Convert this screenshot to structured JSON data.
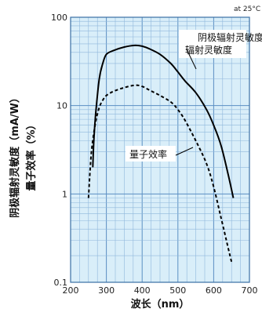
{
  "chart_data": {
    "type": "line",
    "condition_label": "at 25°C",
    "xlabel": "波长（nm）",
    "ylabel_line1": "阴极辐射灵敏度（mA/W）",
    "ylabel_line2": "量子效率（%）",
    "xlim": [
      200,
      700
    ],
    "ylim": [
      0.1,
      100
    ],
    "yscale": "log",
    "grid": true,
    "x_ticks": [
      "200",
      "300",
      "400",
      "500",
      "600",
      "700"
    ],
    "y_ticks": [
      "100",
      "10",
      "1",
      "0.1"
    ],
    "colors": {
      "plot_background": "#d9eef9",
      "grid_major": "#5b8fc3",
      "grid_minor": "#8fb7dc",
      "line": "#000000"
    },
    "series": [
      {
        "name": "阴极辐射灵敏度",
        "style": "solid",
        "x": [
          262,
          265,
          270,
          280,
          290,
          300,
          320,
          350,
          380,
          400,
          420,
          450,
          480,
          500,
          520,
          550,
          580,
          600,
          620,
          640,
          655
        ],
        "y": [
          2.0,
          4.0,
          8.0,
          20.0,
          30.0,
          38.0,
          42.0,
          46.0,
          48.0,
          47.0,
          44.0,
          38.0,
          30.0,
          24.0,
          19.0,
          14.0,
          9.0,
          6.0,
          3.6,
          1.7,
          0.9
        ]
      },
      {
        "name": "量子效率",
        "style": "dashed",
        "x": [
          250,
          255,
          260,
          270,
          280,
          290,
          300,
          320,
          350,
          380,
          400,
          420,
          450,
          480,
          500,
          520,
          550,
          580,
          600,
          620,
          640,
          650
        ],
        "y": [
          0.9,
          2.0,
          3.5,
          6.5,
          9.5,
          11.5,
          13.0,
          14.5,
          16.0,
          17.0,
          16.5,
          15.0,
          13.0,
          11.0,
          9.0,
          6.8,
          4.0,
          2.2,
          1.2,
          0.55,
          0.25,
          0.17
        ]
      }
    ]
  }
}
